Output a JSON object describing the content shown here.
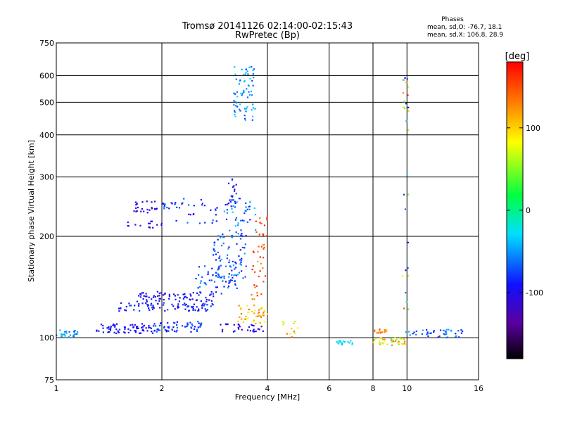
{
  "chart_data": {
    "type": "scatter",
    "title_line1": "Tromsø 20141126 02:14:00-02:15:43",
    "title_line2": "RwPretec (Bp)",
    "xlabel": "Frequency [MHz]",
    "ylabel": "Stationary phase Virtual Height [km]",
    "x_scale": "log",
    "y_scale": "log",
    "xlim": [
      1,
      16
    ],
    "ylim": [
      75,
      750
    ],
    "x_ticks": [
      {
        "value": 1,
        "label": "1"
      },
      {
        "value": 2,
        "label": "2"
      },
      {
        "value": 4,
        "label": "4"
      },
      {
        "value": 6,
        "label": "6"
      },
      {
        "value": 8,
        "label": "8"
      },
      {
        "value": 10,
        "label": "10"
      },
      {
        "value": 16,
        "label": "16"
      }
    ],
    "y_ticks": [
      {
        "value": 75,
        "label": "75"
      },
      {
        "value": 100,
        "label": "100"
      },
      {
        "value": 200,
        "label": "200"
      },
      {
        "value": 300,
        "label": "300"
      },
      {
        "value": 400,
        "label": "400"
      },
      {
        "value": 500,
        "label": "500"
      },
      {
        "value": 600,
        "label": "600"
      },
      {
        "value": 750,
        "label": "750"
      }
    ],
    "grid": true,
    "stats": {
      "heading": "Phases",
      "line_o": "mean, sd,O: -76.7, 18.1",
      "line_x": "mean, sd,X: 106.8, 28.9"
    },
    "colorbar": {
      "label": "[deg]",
      "range": [
        -180,
        180
      ],
      "ticks": [
        {
          "value": 100,
          "label": "100"
        },
        {
          "value": 0,
          "label": "0"
        },
        {
          "value": -100,
          "label": "-100"
        }
      ]
    },
    "clusters": [
      {
        "x": [
          1.0,
          1.15
        ],
        "y": [
          100,
          106
        ],
        "phase": [
          -70,
          -30
        ],
        "n": 25
      },
      {
        "x": [
          1.3,
          1.9
        ],
        "y": [
          103,
          110
        ],
        "phase": [
          -110,
          -80
        ],
        "n": 70
      },
      {
        "x": [
          1.9,
          2.6
        ],
        "y": [
          104,
          112
        ],
        "phase": [
          -100,
          -60
        ],
        "n": 60
      },
      {
        "x": [
          1.5,
          2.8
        ],
        "y": [
          120,
          127
        ],
        "phase": [
          -110,
          -70
        ],
        "n": 80
      },
      {
        "x": [
          1.7,
          2.9
        ],
        "y": [
          128,
          137
        ],
        "phase": [
          -115,
          -80
        ],
        "n": 70
      },
      {
        "x": [
          2.5,
          3.3
        ],
        "y": [
          135,
          165
        ],
        "phase": [
          -100,
          -50
        ],
        "n": 60
      },
      {
        "x": [
          2.8,
          3.5
        ],
        "y": [
          150,
          205
        ],
        "phase": [
          -100,
          -40
        ],
        "n": 70
      },
      {
        "x": [
          3.0,
          3.7
        ],
        "y": [
          200,
          260
        ],
        "phase": [
          -100,
          -30
        ],
        "n": 50
      },
      {
        "x": [
          3.1,
          3.3
        ],
        "y": [
          250,
          300
        ],
        "phase": [
          -110,
          -70
        ],
        "n": 15
      },
      {
        "x": [
          1.65,
          1.95
        ],
        "y": [
          235,
          255
        ],
        "phase": [
          -120,
          -90
        ],
        "n": 25
      },
      {
        "x": [
          1.55,
          2.0
        ],
        "y": [
          212,
          222
        ],
        "phase": [
          -120,
          -90
        ],
        "n": 15
      },
      {
        "x": [
          2.0,
          2.3
        ],
        "y": [
          242,
          252
        ],
        "phase": [
          -100,
          -60
        ],
        "n": 15
      },
      {
        "x": [
          2.1,
          2.9
        ],
        "y": [
          218,
          260
        ],
        "phase": [
          -100,
          -60
        ],
        "n": 25
      },
      {
        "x": [
          3.2,
          3.7
        ],
        "y": [
          440,
          640
        ],
        "phase": [
          -80,
          -20
        ],
        "n": 70
      },
      {
        "x": [
          3.3,
          4.0
        ],
        "y": [
          110,
          125
        ],
        "phase": [
          70,
          150
        ],
        "n": 45
      },
      {
        "x": [
          3.6,
          4.0
        ],
        "y": [
          130,
          190
        ],
        "phase": [
          120,
          170
        ],
        "n": 30
      },
      {
        "x": [
          3.7,
          4.0
        ],
        "y": [
          200,
          230
        ],
        "phase": [
          130,
          170
        ],
        "n": 12
      },
      {
        "x": [
          2.9,
          3.9
        ],
        "y": [
          104,
          110
        ],
        "phase": [
          -120,
          -90
        ],
        "n": 30
      },
      {
        "x": [
          4.4,
          4.9
        ],
        "y": [
          100,
          112
        ],
        "phase": [
          60,
          140
        ],
        "n": 12
      },
      {
        "x": [
          6.3,
          7.0
        ],
        "y": [
          95,
          98
        ],
        "phase": [
          -40,
          -20
        ],
        "n": 18
      },
      {
        "x": [
          7.9,
          9.9
        ],
        "y": [
          95,
          100
        ],
        "phase": [
          40,
          140
        ],
        "n": 40
      },
      {
        "x": [
          8.0,
          8.8
        ],
        "y": [
          102,
          106
        ],
        "phase": [
          110,
          160
        ],
        "n": 15
      },
      {
        "x": [
          10.0,
          14.5
        ],
        "y": [
          100,
          106
        ],
        "phase": [
          -100,
          -40
        ],
        "n": 40
      },
      {
        "x": [
          9.7,
          10.1
        ],
        "y": [
          100,
          620
        ],
        "phase": [
          -120,
          170
        ],
        "n": 30
      }
    ]
  }
}
